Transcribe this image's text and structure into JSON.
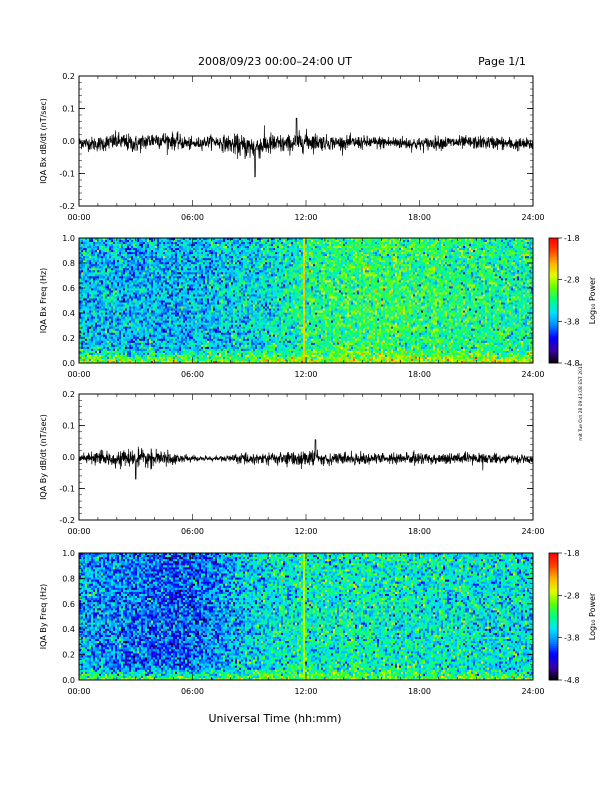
{
  "header": {
    "title": "2008/09/23  00:00–24:00 UT",
    "page": "Page 1/1"
  },
  "footer": {
    "xlabel": "Universal Time (hh:mm)",
    "side_note": "mit Tue Oct 28 09:43:08 EST 2014"
  },
  "x_ticks": [
    "00:00",
    "06:00",
    "12:00",
    "18:00",
    "24:00"
  ],
  "colorbar": {
    "label": "Log₁₀ Power",
    "tick_labels": [
      "-1.8",
      "-2.8",
      "-3.8",
      "-4.8"
    ],
    "range": [
      -4.8,
      -1.8
    ],
    "colormap": [
      "#000000",
      "#3a00a8",
      "#0000ff",
      "#0088ff",
      "#00e0ff",
      "#00ff80",
      "#60ff00",
      "#e0ff00",
      "#ffb000",
      "#ff4000",
      "#ff0000"
    ]
  },
  "chart_data": [
    {
      "type": "line",
      "ylabel": "IQA Bx dB/dt (nT/sec)",
      "x_range_hours": [
        0,
        24
      ],
      "ylim": [
        -0.2,
        0.2
      ],
      "y_ticks": [
        "0.2",
        "0.1",
        "0.0",
        "-0.1",
        "-0.2"
      ],
      "y_values": [
        0.2,
        0.1,
        0.0,
        -0.1,
        -0.2
      ],
      "noise_envelope": {
        "x": [
          0,
          1,
          2,
          3,
          4,
          5,
          6,
          7,
          8,
          9,
          10,
          11,
          12,
          13,
          14,
          15,
          16,
          17,
          18,
          19,
          20,
          21,
          22,
          23,
          24
        ],
        "amplitude": [
          0.02,
          0.025,
          0.03,
          0.03,
          0.03,
          0.028,
          0.02,
          0.02,
          0.03,
          0.045,
          0.04,
          0.03,
          0.035,
          0.025,
          0.022,
          0.022,
          0.022,
          0.022,
          0.022,
          0.022,
          0.022,
          0.022,
          0.022,
          0.022,
          0.02
        ],
        "baseline": [
          -0.005,
          -0.01,
          0.0,
          -0.01,
          0.005,
          0.0,
          -0.01,
          0.0,
          -0.01,
          -0.02,
          -0.01,
          -0.01,
          0.0,
          -0.005,
          -0.005,
          -0.005,
          -0.005,
          -0.005,
          -0.01,
          -0.005,
          -0.005,
          -0.005,
          -0.005,
          -0.01,
          -0.01
        ],
        "min_dip": {
          "x": 9.3,
          "y": -0.11
        },
        "max_peak": {
          "x": 11.5,
          "y": 0.07
        }
      }
    },
    {
      "type": "heatmap",
      "ylabel": "IQA Bx Freq (Hz)",
      "x_range_hours": [
        0,
        24
      ],
      "ylim": [
        0.0,
        1.0
      ],
      "y_ticks": [
        "1.0",
        "0.8",
        "0.6",
        "0.4",
        "0.2",
        "0.0"
      ],
      "y_values": [
        1.0,
        0.8,
        0.6,
        0.4,
        0.2,
        0.0
      ],
      "background_log_power": {
        "x": [
          0,
          4,
          8,
          10,
          12,
          14,
          16,
          18,
          20,
          22,
          24
        ],
        "value": [
          -3.7,
          -3.75,
          -3.65,
          -3.55,
          -3.35,
          -3.25,
          -3.2,
          -3.25,
          -3.3,
          -3.35,
          -3.4
        ]
      },
      "low_frequency_band": {
        "max_hz": 0.12,
        "peak_log_power": -2.6
      },
      "vertical_line_hour": 11.9
    },
    {
      "type": "line",
      "ylabel": "IQA By dB/dt (nT/sec)",
      "x_range_hours": [
        0,
        24
      ],
      "ylim": [
        -0.2,
        0.2
      ],
      "y_ticks": [
        "0.2",
        "0.1",
        "0.0",
        "-0.1",
        "-0.2"
      ],
      "y_values": [
        0.2,
        0.1,
        0.0,
        -0.1,
        -0.2
      ],
      "noise_envelope": {
        "x": [
          0,
          1,
          2,
          3,
          4,
          5,
          6,
          7,
          8,
          9,
          10,
          11,
          12,
          13,
          14,
          15,
          16,
          17,
          18,
          19,
          20,
          21,
          22,
          23,
          24
        ],
        "amplitude": [
          0.018,
          0.022,
          0.025,
          0.03,
          0.028,
          0.02,
          0.01,
          0.008,
          0.012,
          0.02,
          0.022,
          0.025,
          0.03,
          0.022,
          0.02,
          0.02,
          0.02,
          0.02,
          0.02,
          0.02,
          0.02,
          0.018,
          0.016,
          0.014,
          0.012
        ],
        "baseline": [
          -0.005,
          -0.005,
          -0.005,
          -0.005,
          -0.005,
          -0.005,
          -0.005,
          -0.005,
          -0.005,
          -0.005,
          -0.005,
          -0.005,
          -0.005,
          -0.005,
          -0.005,
          -0.005,
          -0.005,
          -0.005,
          -0.005,
          -0.005,
          -0.005,
          -0.005,
          -0.005,
          -0.005,
          -0.01
        ],
        "min_dip": {
          "x": 3.0,
          "y": -0.07
        },
        "max_peak": {
          "x": 12.5,
          "y": 0.055
        }
      }
    },
    {
      "type": "heatmap",
      "ylabel": "IQA By Freq (Hz)",
      "x_range_hours": [
        0,
        24
      ],
      "ylim": [
        0.0,
        1.0
      ],
      "y_ticks": [
        "1.0",
        "0.8",
        "0.6",
        "0.4",
        "0.2",
        "0.0"
      ],
      "y_values": [
        1.0,
        0.8,
        0.6,
        0.4,
        0.2,
        0.0
      ],
      "background_log_power": {
        "x": [
          0,
          2,
          4,
          6,
          8,
          10,
          12,
          14,
          16,
          18,
          20,
          22,
          24
        ],
        "value": [
          -3.75,
          -3.9,
          -4.0,
          -4.05,
          -3.75,
          -3.55,
          -3.45,
          -3.45,
          -3.45,
          -3.5,
          -3.5,
          -3.55,
          -3.6
        ]
      },
      "low_frequency_band": {
        "max_hz": 0.1,
        "peak_log_power": -2.9
      },
      "vertical_line_hour": 11.9
    }
  ]
}
